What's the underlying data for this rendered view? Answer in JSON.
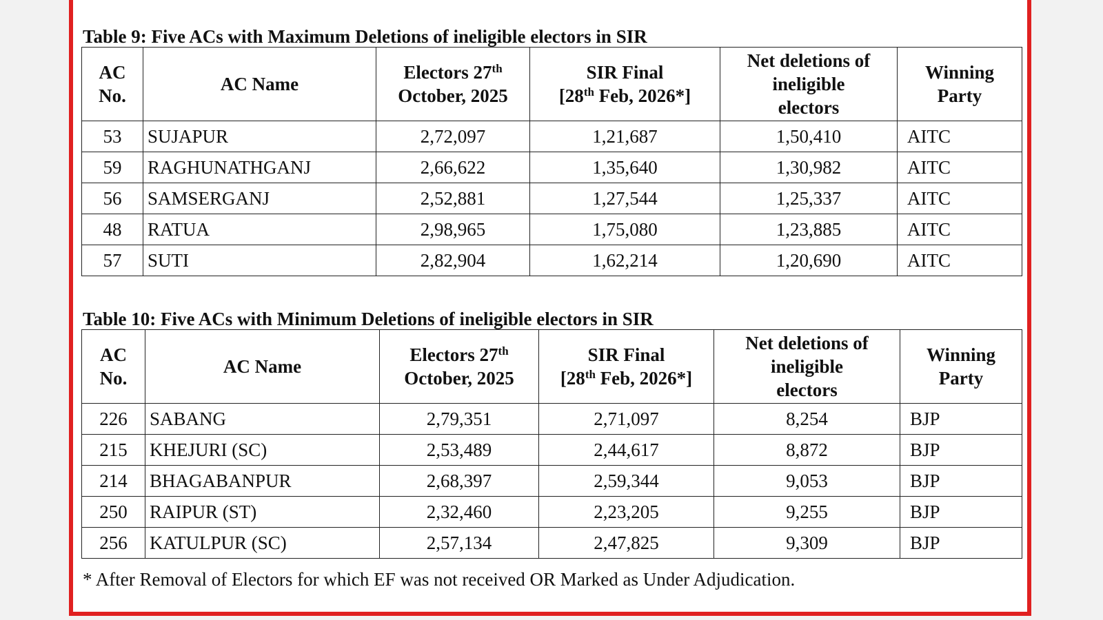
{
  "table9": {
    "caption": "Table 9: Five ACs with Maximum Deletions of ineligible electors in SIR",
    "headers": {
      "ac_no_1": "AC",
      "ac_no_2": "No.",
      "ac_name": "AC Name",
      "electors_1": "Electors 27",
      "electors_sup": "th",
      "electors_2": "October, 2025",
      "sir_1": "SIR Final",
      "sir_2a": "[28",
      "sir_sup": "th",
      "sir_2b": " Feb, 2026*]",
      "net_1": "Net deletions of",
      "net_2": "ineligible",
      "net_3": "electors",
      "party_1": "Winning",
      "party_2": "Party"
    },
    "rows": [
      {
        "ac_no": "53",
        "ac_name": "SUJAPUR",
        "electors": "2,72,097",
        "sir_final": "1,21,687",
        "net_deletions": "1,50,410",
        "party": "AITC"
      },
      {
        "ac_no": "59",
        "ac_name": "RAGHUNATHGANJ",
        "electors": "2,66,622",
        "sir_final": "1,35,640",
        "net_deletions": "1,30,982",
        "party": "AITC"
      },
      {
        "ac_no": "56",
        "ac_name": "SAMSERGANJ",
        "electors": "2,52,881",
        "sir_final": "1,27,544",
        "net_deletions": "1,25,337",
        "party": "AITC"
      },
      {
        "ac_no": "48",
        "ac_name": "RATUA",
        "electors": "2,98,965",
        "sir_final": "1,75,080",
        "net_deletions": "1,23,885",
        "party": "AITC"
      },
      {
        "ac_no": "57",
        "ac_name": "SUTI",
        "electors": "2,82,904",
        "sir_final": "1,62,214",
        "net_deletions": "1,20,690",
        "party": "AITC"
      }
    ]
  },
  "table10": {
    "caption": "Table 10: Five ACs with Minimum Deletions of ineligible electors in SIR",
    "headers": {
      "ac_no_1": "AC",
      "ac_no_2": "No.",
      "ac_name": "AC Name",
      "electors_1": "Electors 27",
      "electors_sup": "th",
      "electors_2": "October, 2025",
      "sir_1": "SIR Final",
      "sir_2a": "[28",
      "sir_sup": "th",
      "sir_2b": " Feb, 2026*]",
      "net_1": "Net deletions of",
      "net_2": "ineligible",
      "net_3": "electors",
      "party_1": "Winning",
      "party_2": "Party"
    },
    "rows": [
      {
        "ac_no": "226",
        "ac_name": "SABANG",
        "electors": "2,79,351",
        "sir_final": "2,71,097",
        "net_deletions": "8,254",
        "party": "BJP"
      },
      {
        "ac_no": "215",
        "ac_name": "KHEJURI (SC)",
        "electors": "2,53,489",
        "sir_final": "2,44,617",
        "net_deletions": "8,872",
        "party": "BJP"
      },
      {
        "ac_no": "214",
        "ac_name": "BHAGABANPUR",
        "electors": "2,68,397",
        "sir_final": "2,59,344",
        "net_deletions": "9,053",
        "party": "BJP"
      },
      {
        "ac_no": "250",
        "ac_name": "RAIPUR (ST)",
        "electors": "2,32,460",
        "sir_final": "2,23,205",
        "net_deletions": "9,255",
        "party": "BJP"
      },
      {
        "ac_no": "256",
        "ac_name": "KATULPUR (SC)",
        "electors": "2,57,134",
        "sir_final": "2,47,825",
        "net_deletions": "9,309",
        "party": "BJP"
      }
    ]
  },
  "footnote": "* After Removal of Electors for which EF was not received OR Marked as Under Adjudication.",
  "colors": {
    "frame_border": "#e02020",
    "background": "#f2f2f2"
  }
}
